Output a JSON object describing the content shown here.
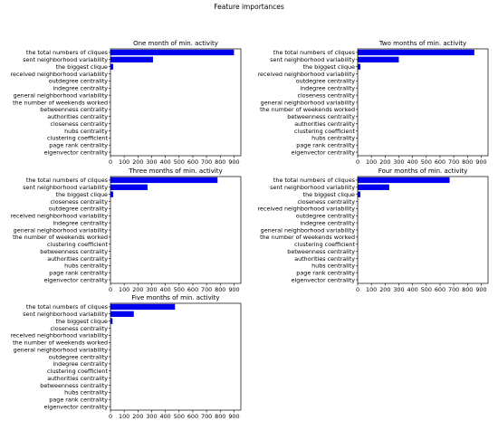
{
  "figure": {
    "title": "Feature importances"
  },
  "colors": {
    "bar": "#0000ee",
    "axis": "#000000",
    "background": "#ffffff"
  },
  "chart_data": [
    {
      "type": "bar",
      "orientation": "horizontal",
      "title": "One month of min. activity",
      "categories": [
        "the total numbers of cliques",
        "sent neighborhood variability",
        "the biggest clique",
        "received neighborhood variability",
        "outdegree centrality",
        "indegree centrality",
        "general neighborhood variability",
        "the number of weekends worked",
        "betweenness centrality",
        "authorities centrality",
        "closeness centrality",
        "hubs centrality",
        "clustering coefficient",
        "page rank centrality",
        "eigenvector centrality"
      ],
      "values": [
        900,
        310,
        20,
        0,
        0,
        0,
        0,
        0,
        0,
        0,
        0,
        0,
        0,
        0,
        0
      ],
      "xlim": [
        0,
        950
      ],
      "xticks": [
        0,
        100,
        200,
        300,
        400,
        500,
        600,
        700,
        800,
        900
      ],
      "grid": false
    },
    {
      "type": "bar",
      "orientation": "horizontal",
      "title": "Two months of min. activity",
      "categories": [
        "the total numbers of cliques",
        "sent neighborhood variability",
        "the biggest clique",
        "received neighborhood variability",
        "outdegree centrality",
        "indegree centrality",
        "closeness centrality",
        "general neighborhood variability",
        "the number of weekends worked",
        "betweenness centrality",
        "authorities centrality",
        "clustering coefficient",
        "hubs centrality",
        "page rank centrality",
        "eigenvector centrality"
      ],
      "values": [
        850,
        300,
        20,
        0,
        0,
        0,
        0,
        0,
        0,
        0,
        0,
        0,
        0,
        0,
        0
      ],
      "xlim": [
        0,
        950
      ],
      "xticks": [
        0,
        100,
        200,
        300,
        400,
        500,
        600,
        700,
        800,
        900
      ],
      "grid": false
    },
    {
      "type": "bar",
      "orientation": "horizontal",
      "title": "Three months of min. activity",
      "categories": [
        "the total numbers of cliques",
        "sent neighborhood variability",
        "the biggest clique",
        "closeness centrality",
        "outdegree centrality",
        "received neighborhood variability",
        "indegree centrality",
        "general neighborhood variability",
        "the number of weekends worked",
        "clustering coefficient",
        "betweenness centrality",
        "authorities centrality",
        "hubs centrality",
        "page rank centrality",
        "eigenvector centrality"
      ],
      "values": [
        780,
        270,
        20,
        0,
        0,
        0,
        0,
        0,
        0,
        0,
        0,
        0,
        0,
        0,
        0
      ],
      "xlim": [
        0,
        950
      ],
      "xticks": [
        0,
        100,
        200,
        300,
        400,
        500,
        600,
        700,
        800,
        900
      ],
      "grid": false
    },
    {
      "type": "bar",
      "orientation": "horizontal",
      "title": "Four months of min. activity",
      "categories": [
        "the total numbers of cliques",
        "sent neighborhood variability",
        "the biggest clique",
        "closeness centrality",
        "received neighborhood variability",
        "outdegree centrality",
        "indegree centrality",
        "general neighborhood variability",
        "the number of weekends worked",
        "clustering coefficient",
        "betweenness centrality",
        "authorities centrality",
        "hubs centrality",
        "page rank centrality",
        "eigenvector centrality"
      ],
      "values": [
        670,
        230,
        20,
        0,
        0,
        0,
        0,
        0,
        0,
        0,
        0,
        0,
        0,
        0,
        0
      ],
      "xlim": [
        0,
        950
      ],
      "xticks": [
        0,
        100,
        200,
        300,
        400,
        500,
        600,
        700,
        800,
        900
      ],
      "grid": false
    },
    {
      "type": "bar",
      "orientation": "horizontal",
      "title": "Five months of min. activity",
      "categories": [
        "the total numbers of cliques",
        "sent neighborhood variability",
        "the biggest clique",
        "closeness centrality",
        "received neighborhood variability",
        "the number of weekends worked",
        "general neighborhood variability",
        "outdegree centrality",
        "indegree centrality",
        "clustering coefficient",
        "authorities centrality",
        "betweenness centrality",
        "hubs centrality",
        "page rank centrality",
        "eigenvector centrality"
      ],
      "values": [
        470,
        170,
        15,
        0,
        0,
        0,
        0,
        0,
        0,
        0,
        0,
        0,
        0,
        0,
        0
      ],
      "xlim": [
        0,
        950
      ],
      "xticks": [
        0,
        100,
        200,
        300,
        400,
        500,
        600,
        700,
        800,
        900
      ],
      "grid": false
    }
  ]
}
